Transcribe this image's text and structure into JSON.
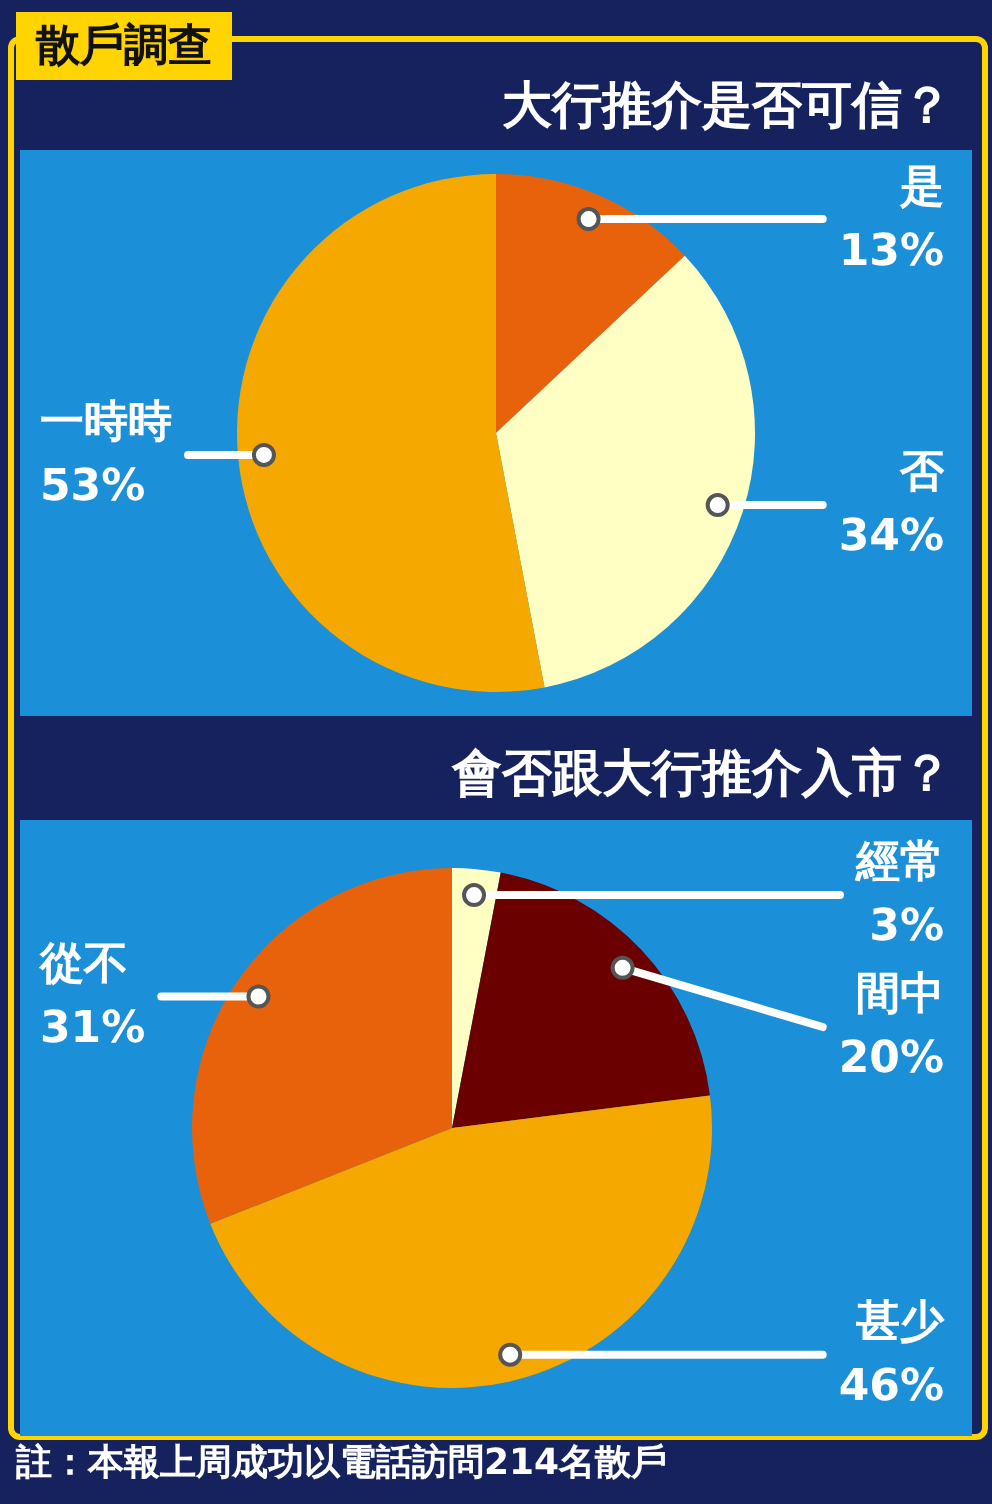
{
  "chart_data": [
    {
      "type": "pie",
      "title": "大行推介是否可信？",
      "annotations": [
        "散戶調查"
      ],
      "categories": [
        "是",
        "否",
        "一時時"
      ],
      "values": [
        13,
        34,
        53
      ],
      "value_labels": [
        "13%",
        "34%",
        "53%"
      ],
      "colors": [
        "#e8620c",
        "#ffffc4",
        "#f5a900"
      ]
    },
    {
      "type": "pie",
      "title": "會否跟大行推介入市？",
      "annotations": [
        "註：本報上周成功以電話訪問214名散戶"
      ],
      "categories": [
        "經常",
        "間中",
        "甚少",
        "從不"
      ],
      "values": [
        3,
        20,
        46,
        31
      ],
      "value_labels": [
        "3%",
        "20%",
        "46%",
        "31%"
      ],
      "colors": [
        "#ffffc4",
        "#6a0000",
        "#f5a900",
        "#e8620c"
      ]
    }
  ]
}
